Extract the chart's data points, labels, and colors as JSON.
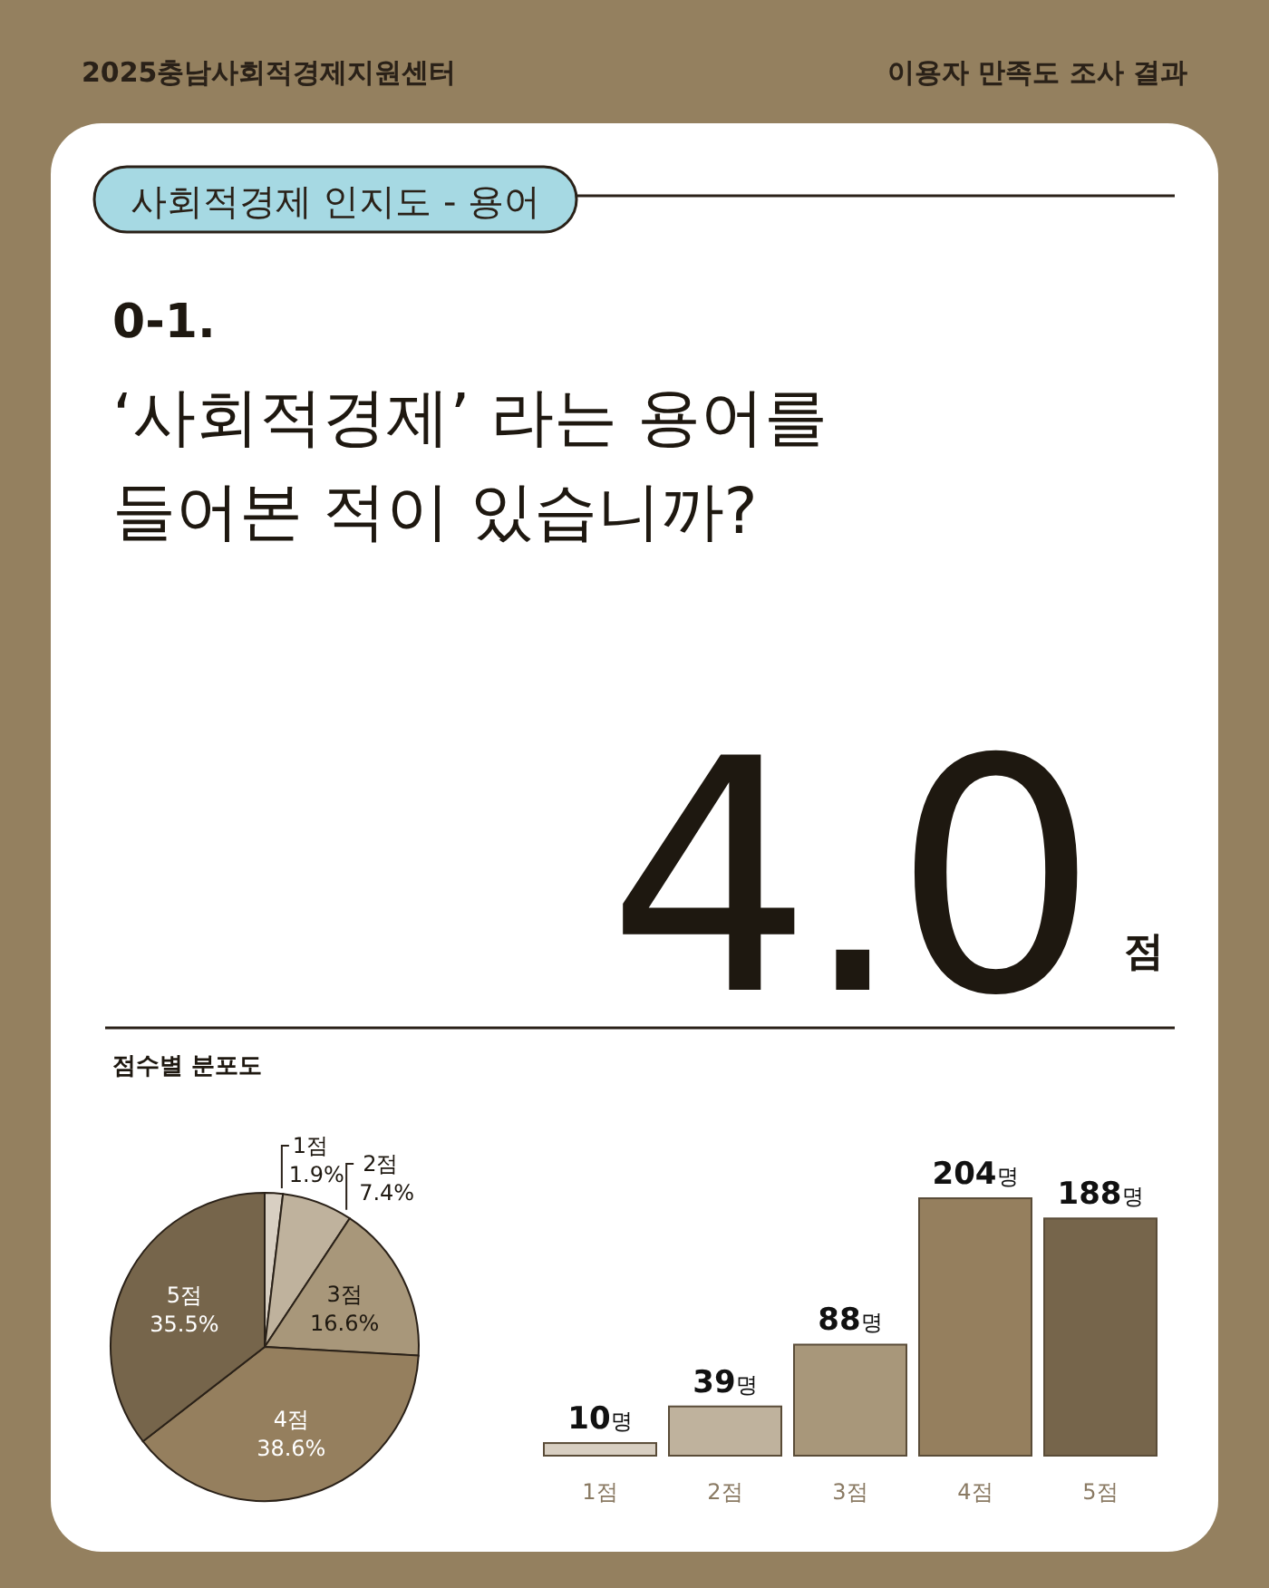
{
  "chart_data": [
    {
      "type": "other",
      "title": "‘사회적경제’ 라는 용어를 들어본 적이 있습니까?",
      "subtitle": "사회적경제 인지도 - 용어",
      "annotations": [
        "2025충남사회적경제지원센터",
        "이용자 만족도 조사 결과",
        "0-1.",
        "4.0",
        "점"
      ]
    },
    {
      "type": "pie",
      "title": "점수별 분포도",
      "categories": [
        "1점",
        "2점",
        "3점",
        "4점",
        "5점"
      ],
      "values": [
        1.9,
        7.4,
        16.6,
        38.6,
        35.5
      ],
      "colors": [
        "#d8cfc2",
        "#bfb29d",
        "#a8977a",
        "#957f5e",
        "#76654b"
      ],
      "value_labels": [
        "1.9%",
        "7.4%",
        "16.6%",
        "38.6%",
        "35.5%"
      ]
    },
    {
      "type": "bar",
      "categories": [
        "1점",
        "2점",
        "3점",
        "4점",
        "5점"
      ],
      "values": [
        10,
        39,
        88,
        204,
        188
      ],
      "colors": [
        "#d8cfc2",
        "#bfb29d",
        "#a8977a",
        "#957f5e",
        "#76654b"
      ],
      "value_labels": [
        "10명",
        "39명",
        "88명",
        "204명",
        "188명"
      ]
    }
  ]
}
